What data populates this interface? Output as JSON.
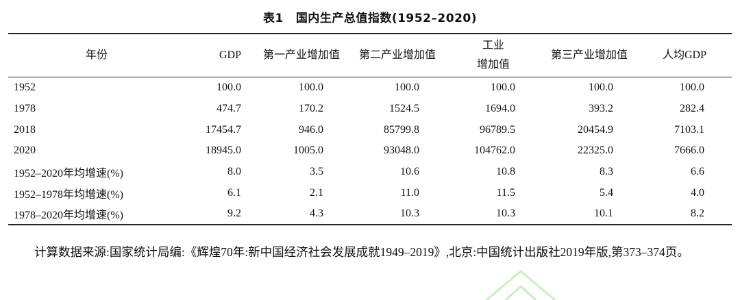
{
  "caption": {
    "label": "表1",
    "title": "国内生产总值指数(1952–2020)"
  },
  "table": {
    "headers": {
      "year": "年份",
      "gdp": "GDP",
      "primary": "第一产业增加值",
      "secondary": "第二产业增加值",
      "industry_line1": "工业",
      "industry_line2": "增加值",
      "tertiary": "第三产业增加值",
      "per_capita": "人均GDP"
    },
    "rows": [
      {
        "year": "1952",
        "gdp": "100.0",
        "primary": "100.0",
        "secondary": "100.0",
        "industry": "100.0",
        "tertiary": "100.0",
        "per_capita": "100.0"
      },
      {
        "year": "1978",
        "gdp": "474.7",
        "primary": "170.2",
        "secondary": "1524.5",
        "industry": "1694.0",
        "tertiary": "393.2",
        "per_capita": "282.4"
      },
      {
        "year": "2018",
        "gdp": "17454.7",
        "primary": "946.0",
        "secondary": "85799.8",
        "industry": "96789.5",
        "tertiary": "20454.9",
        "per_capita": "7103.1"
      },
      {
        "year": "2020",
        "gdp": "18945.0",
        "primary": "1005.0",
        "secondary": "93048.0",
        "industry": "104762.0",
        "tertiary": "22325.0",
        "per_capita": "7666.0"
      },
      {
        "year": "1952–2020年均增速(%)",
        "gdp": "8.0",
        "primary": "3.5",
        "secondary": "10.6",
        "industry": "10.8",
        "tertiary": "8.3",
        "per_capita": "6.6"
      },
      {
        "year": "1952–1978年均增速(%)",
        "gdp": "6.1",
        "primary": "2.1",
        "secondary": "11.0",
        "industry": "11.5",
        "tertiary": "5.4",
        "per_capita": "4.0"
      },
      {
        "year": "1978–2020年均增速(%)",
        "gdp": "9.2",
        "primary": "4.3",
        "secondary": "10.3",
        "industry": "10.3",
        "tertiary": "10.1",
        "per_capita": "8.2"
      }
    ]
  },
  "note": {
    "text": "计算数据来源:国家统计局编:《辉煌70年:新中国经济社会发展成就1949–2019》,北京:中国统计出版社2019年版,第373–374页。"
  },
  "colors": {
    "text": "#111111",
    "rule": "#222222",
    "watermark": "#c8efc0"
  }
}
